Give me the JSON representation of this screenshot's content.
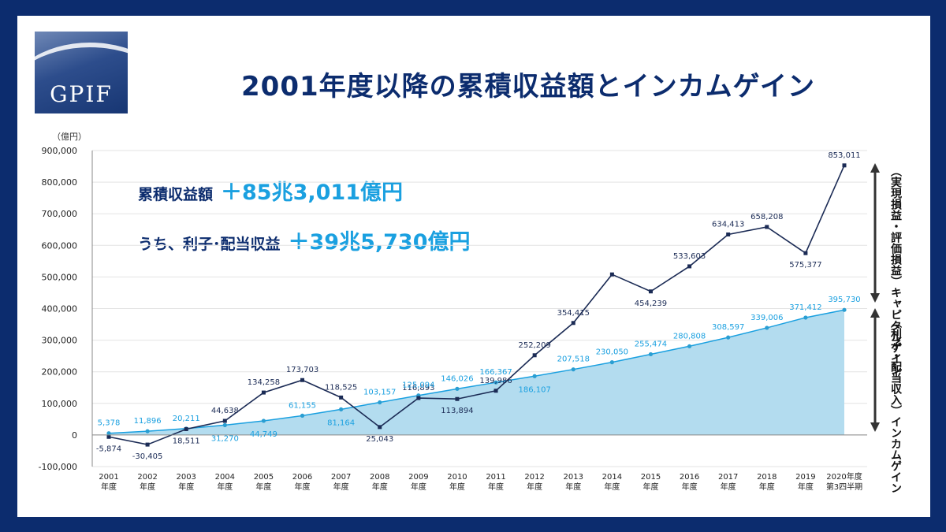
{
  "logo": {
    "text": "GPIF"
  },
  "title": "2001年度以降の累積収益額とインカムゲイン",
  "unit": "（億円）",
  "summary": {
    "cumulative_label": "累積収益額",
    "cumulative_value": "＋85兆3,011億円",
    "income_label": "うち、利子･配当収益",
    "income_value": "＋39兆5,730億円"
  },
  "side_labels": {
    "capital": "（実現損益・評価損益）キャピタルゲイン",
    "income": "（利子・配当収入）インカムゲイン"
  },
  "colors": {
    "navy": "#0c2c6e",
    "line_cum": "#1b2b55",
    "line_inc": "#1aa0e0",
    "area": "#b3dcef"
  },
  "chart_data": {
    "type": "line",
    "categories": [
      "2001年度",
      "2002年度",
      "2003年度",
      "2004年度",
      "2005年度",
      "2006年度",
      "2007年度",
      "2008年度",
      "2009年度",
      "2010年度",
      "2011年度",
      "2012年度",
      "2013年度",
      "2014年度",
      "2015年度",
      "2016年度",
      "2017年度",
      "2018年度",
      "2019年度",
      "2020年度第3四半期"
    ],
    "ylim": [
      -100000,
      900000
    ],
    "yticks": [
      -100000,
      0,
      100000,
      200000,
      300000,
      400000,
      500000,
      600000,
      700000,
      800000,
      900000
    ],
    "ytick_labels": [
      "-100,000",
      "0",
      "100,000",
      "200,000",
      "300,000",
      "400,000",
      "500,000",
      "600,000",
      "700,000",
      "800,000",
      "900,000"
    ],
    "series": [
      {
        "values": [
          -5874,
          -30405,
          18511,
          44638,
          134258,
          173703,
          118525,
          25043,
          116893,
          113894,
          139986,
          252209,
          354415,
          508000,
          454239,
          533603,
          634413,
          658208,
          575377,
          853011
        ],
        "labels": [
          "-5,874",
          "-30,405",
          "18,511",
          "44,638",
          "134,258",
          "173,703",
          "118,525",
          "25,043",
          "116,893",
          "113,894",
          "139,986",
          "252,209",
          "354,415",
          "",
          "454,239",
          "533,603",
          "634,413",
          "658,208",
          "575,377",
          "853,011"
        ]
      },
      {
        "values": [
          5378,
          11896,
          20211,
          31270,
          44749,
          61155,
          81164,
          103157,
          125094,
          146026,
          166367,
          186107,
          207518,
          230050,
          255474,
          280808,
          308597,
          339006,
          371412,
          395730
        ],
        "labels": [
          "5,378",
          "11,896",
          "20,211",
          "31,270",
          "44,749",
          "61,155",
          "81,164",
          "103,157",
          "125,094",
          "146,026",
          "166,367",
          "186,107",
          "207,518",
          "230,050",
          "255,474",
          "280,808",
          "308,597",
          "339,006",
          "371,412",
          "395,730"
        ]
      }
    ]
  }
}
